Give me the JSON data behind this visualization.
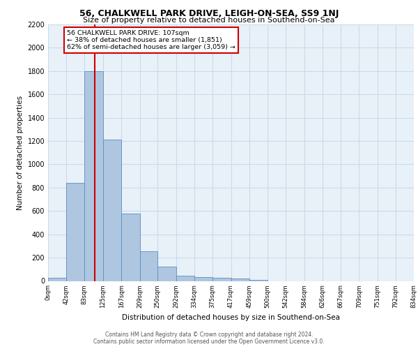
{
  "title": "56, CHALKWELL PARK DRIVE, LEIGH-ON-SEA, SS9 1NJ",
  "subtitle": "Size of property relative to detached houses in Southend-on-Sea",
  "xlabel": "Distribution of detached houses by size in Southend-on-Sea",
  "ylabel": "Number of detached properties",
  "bin_edges": [
    0,
    42,
    83,
    125,
    167,
    209,
    250,
    292,
    334,
    375,
    417,
    459,
    500,
    542,
    584,
    626,
    667,
    709,
    751,
    792,
    834
  ],
  "bin_labels": [
    "0sqm",
    "42sqm",
    "83sqm",
    "125sqm",
    "167sqm",
    "209sqm",
    "250sqm",
    "292sqm",
    "334sqm",
    "375sqm",
    "417sqm",
    "459sqm",
    "500sqm",
    "542sqm",
    "584sqm",
    "626sqm",
    "667sqm",
    "709sqm",
    "751sqm",
    "792sqm",
    "834sqm"
  ],
  "counts": [
    25,
    840,
    1800,
    1215,
    580,
    255,
    120,
    45,
    35,
    28,
    18,
    10,
    0,
    0,
    0,
    0,
    0,
    0,
    0,
    0
  ],
  "bar_color": "#aec6e0",
  "bar_edge_color": "#5a8fc0",
  "grid_color": "#c8d8eb",
  "bg_color": "#e8f0f8",
  "property_line_x": 107,
  "property_line_color": "#cc0000",
  "annotation_text": "56 CHALKWELL PARK DRIVE: 107sqm\n← 38% of detached houses are smaller (1,851)\n62% of semi-detached houses are larger (3,059) →",
  "annotation_box_color": "#ffffff",
  "annotation_box_edge_color": "#cc0000",
  "footer_text": "Contains HM Land Registry data © Crown copyright and database right 2024.\nContains public sector information licensed under the Open Government Licence v3.0.",
  "ylim": [
    0,
    2200
  ],
  "yticks": [
    0,
    200,
    400,
    600,
    800,
    1000,
    1200,
    1400,
    1600,
    1800,
    2000,
    2200
  ]
}
